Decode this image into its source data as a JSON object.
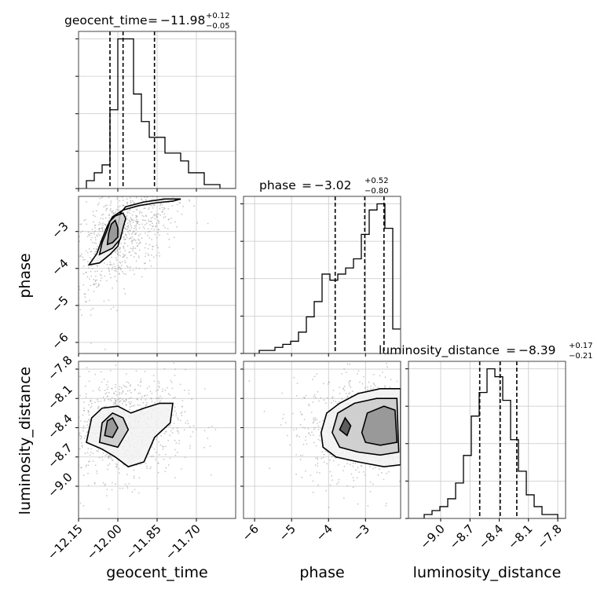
{
  "chart_data": {
    "type": "corner",
    "parameters": [
      "geocent_time",
      "phase",
      "luminosity_distance"
    ],
    "xlabels": [
      "geocent_time",
      "phase",
      "luminosity_distance"
    ],
    "ylabels": [
      "",
      "phase",
      "luminosity_distance"
    ],
    "titles": [
      {
        "name": "geocent_time",
        "median": "−11.98",
        "plus": "+0.12",
        "minus": "−0.05"
      },
      {
        "name": "phase",
        "median": "−3.02",
        "plus": "+0.52",
        "minus": "−0.80"
      },
      {
        "name": "luminosity_distance",
        "median": "−8.39",
        "plus": "+0.17",
        "minus": "−0.21"
      }
    ],
    "ranges": [
      [
        -12.15,
        -11.55
      ],
      [
        -6.3,
        -2.05
      ],
      [
        -9.33,
        -7.72
      ]
    ],
    "ticks": [
      {
        "values": [
          -12.15,
          -12.0,
          -11.85,
          -11.7
        ],
        "labels": [
          "−12.15",
          "−12.00",
          "−11.85",
          "−11.70"
        ]
      },
      {
        "values": [
          -6,
          -5,
          -4,
          -3
        ],
        "labels": [
          "−6",
          "−5",
          "−4",
          "−3"
        ]
      },
      {
        "values": [
          -9.0,
          -8.7,
          -8.4,
          -8.1,
          -7.8
        ],
        "labels": [
          "−9.0",
          "−8.7",
          "−8.4",
          "−8.1",
          "−7.8"
        ]
      }
    ],
    "quantiles": [
      [
        -12.03,
        -11.98,
        -11.86
      ],
      [
        -3.82,
        -3.02,
        -2.5
      ],
      [
        -8.6,
        -8.39,
        -8.22
      ]
    ],
    "histograms": [
      {
        "param": "geocent_time",
        "bins": 20,
        "counts": [
          0,
          2,
          4,
          6,
          20,
          38,
          38,
          24,
          17,
          13,
          13,
          9,
          9,
          7,
          4,
          4,
          1,
          1,
          0,
          0
        ]
      },
      {
        "param": "phase",
        "bins": 20,
        "counts": [
          0,
          0,
          1,
          1,
          2,
          3,
          4,
          7,
          12,
          17,
          26,
          24,
          26,
          28,
          31,
          39,
          47,
          49,
          41,
          8
        ]
      },
      {
        "param": "luminosity_distance",
        "bins": 20,
        "counts": [
          0,
          0,
          1,
          2,
          3,
          5,
          9,
          16,
          26,
          32,
          38,
          36,
          30,
          20,
          12,
          6,
          3,
          1,
          1,
          0
        ]
      }
    ],
    "contours": [
      {
        "x": "geocent_time",
        "y": "phase",
        "levels": [
          [
            [
              -12.11,
              -3.9
            ],
            [
              -12.08,
              -3.6
            ],
            [
              -12.06,
              -3.2
            ],
            [
              -12.04,
              -2.85
            ],
            [
              -12.02,
              -2.6
            ],
            [
              -11.98,
              -2.42
            ],
            [
              -11.92,
              -2.3
            ],
            [
              -11.85,
              -2.22
            ],
            [
              -11.79,
              -2.18
            ],
            [
              -11.76,
              -2.12
            ],
            [
              -11.82,
              -2.12
            ],
            [
              -11.9,
              -2.2
            ],
            [
              -11.97,
              -2.33
            ],
            [
              -11.99,
              -2.5
            ],
            [
              -12.0,
              -2.85
            ],
            [
              -11.99,
              -3.15
            ],
            [
              -12.0,
              -3.4
            ],
            [
              -12.03,
              -3.62
            ],
            [
              -12.07,
              -3.85
            ],
            [
              -12.11,
              -3.9
            ]
          ],
          [
            [
              -12.07,
              -3.62
            ],
            [
              -12.06,
              -3.3
            ],
            [
              -12.04,
              -2.95
            ],
            [
              -12.03,
              -2.72
            ],
            [
              -12.01,
              -2.58
            ],
            [
              -11.98,
              -2.5
            ],
            [
              -11.97,
              -2.65
            ],
            [
              -11.98,
              -2.9
            ],
            [
              -11.99,
              -3.2
            ],
            [
              -12.02,
              -3.45
            ],
            [
              -12.07,
              -3.62
            ]
          ],
          [
            [
              -12.04,
              -3.35
            ],
            [
              -12.035,
              -3.05
            ],
            [
              -12.025,
              -2.8
            ],
            [
              -12.01,
              -2.7
            ],
            [
              -12.0,
              -2.9
            ],
            [
              -12.0,
              -3.15
            ],
            [
              -12.02,
              -3.3
            ],
            [
              -12.04,
              -3.35
            ]
          ]
        ]
      },
      {
        "x": "geocent_time",
        "y": "luminosity_distance",
        "levels": [
          [
            [
              -12.12,
              -8.55
            ],
            [
              -12.1,
              -8.3
            ],
            [
              -12.06,
              -8.2
            ],
            [
              -12.0,
              -8.18
            ],
            [
              -11.95,
              -8.25
            ],
            [
              -11.9,
              -8.2
            ],
            [
              -11.84,
              -8.15
            ],
            [
              -11.79,
              -8.15
            ],
            [
              -11.8,
              -8.35
            ],
            [
              -11.86,
              -8.5
            ],
            [
              -11.9,
              -8.75
            ],
            [
              -11.96,
              -8.8
            ],
            [
              -12.01,
              -8.7
            ],
            [
              -12.06,
              -8.62
            ],
            [
              -12.12,
              -8.55
            ]
          ],
          [
            [
              -12.07,
              -8.55
            ],
            [
              -12.06,
              -8.35
            ],
            [
              -12.02,
              -8.25
            ],
            [
              -11.98,
              -8.3
            ],
            [
              -11.96,
              -8.42
            ],
            [
              -12.0,
              -8.6
            ],
            [
              -12.07,
              -8.55
            ]
          ],
          [
            [
              -12.05,
              -8.48
            ],
            [
              -12.04,
              -8.33
            ],
            [
              -12.02,
              -8.3
            ],
            [
              -12.0,
              -8.4
            ],
            [
              -12.02,
              -8.5
            ],
            [
              -12.05,
              -8.48
            ]
          ]
        ]
      },
      {
        "x": "phase",
        "y": "luminosity_distance",
        "levels": [
          [
            [
              -4.2,
              -8.45
            ],
            [
              -4.05,
              -8.25
            ],
            [
              -3.7,
              -8.15
            ],
            [
              -3.2,
              -8.05
            ],
            [
              -2.6,
              -8.0
            ],
            [
              -2.05,
              -8.0
            ],
            [
              -2.05,
              -8.78
            ],
            [
              -2.5,
              -8.8
            ],
            [
              -3.2,
              -8.75
            ],
            [
              -3.8,
              -8.7
            ],
            [
              -4.15,
              -8.6
            ],
            [
              -4.2,
              -8.45
            ]
          ],
          [
            [
              -3.9,
              -8.45
            ],
            [
              -3.75,
              -8.25
            ],
            [
              -3.3,
              -8.15
            ],
            [
              -2.7,
              -8.1
            ],
            [
              -2.15,
              -8.1
            ],
            [
              -2.1,
              -8.65
            ],
            [
              -2.6,
              -8.68
            ],
            [
              -3.2,
              -8.65
            ],
            [
              -3.7,
              -8.6
            ],
            [
              -3.9,
              -8.45
            ]
          ],
          [
            [
              -3.1,
              -8.45
            ],
            [
              -2.95,
              -8.25
            ],
            [
              -2.5,
              -8.18
            ],
            [
              -2.2,
              -8.22
            ],
            [
              -2.15,
              -8.55
            ],
            [
              -2.6,
              -8.58
            ],
            [
              -3.0,
              -8.55
            ],
            [
              -3.1,
              -8.45
            ]
          ],
          [
            [
              -3.7,
              -8.42
            ],
            [
              -3.55,
              -8.3
            ],
            [
              -3.4,
              -8.38
            ],
            [
              -3.5,
              -8.48
            ],
            [
              -3.7,
              -8.42
            ]
          ]
        ]
      }
    ]
  }
}
